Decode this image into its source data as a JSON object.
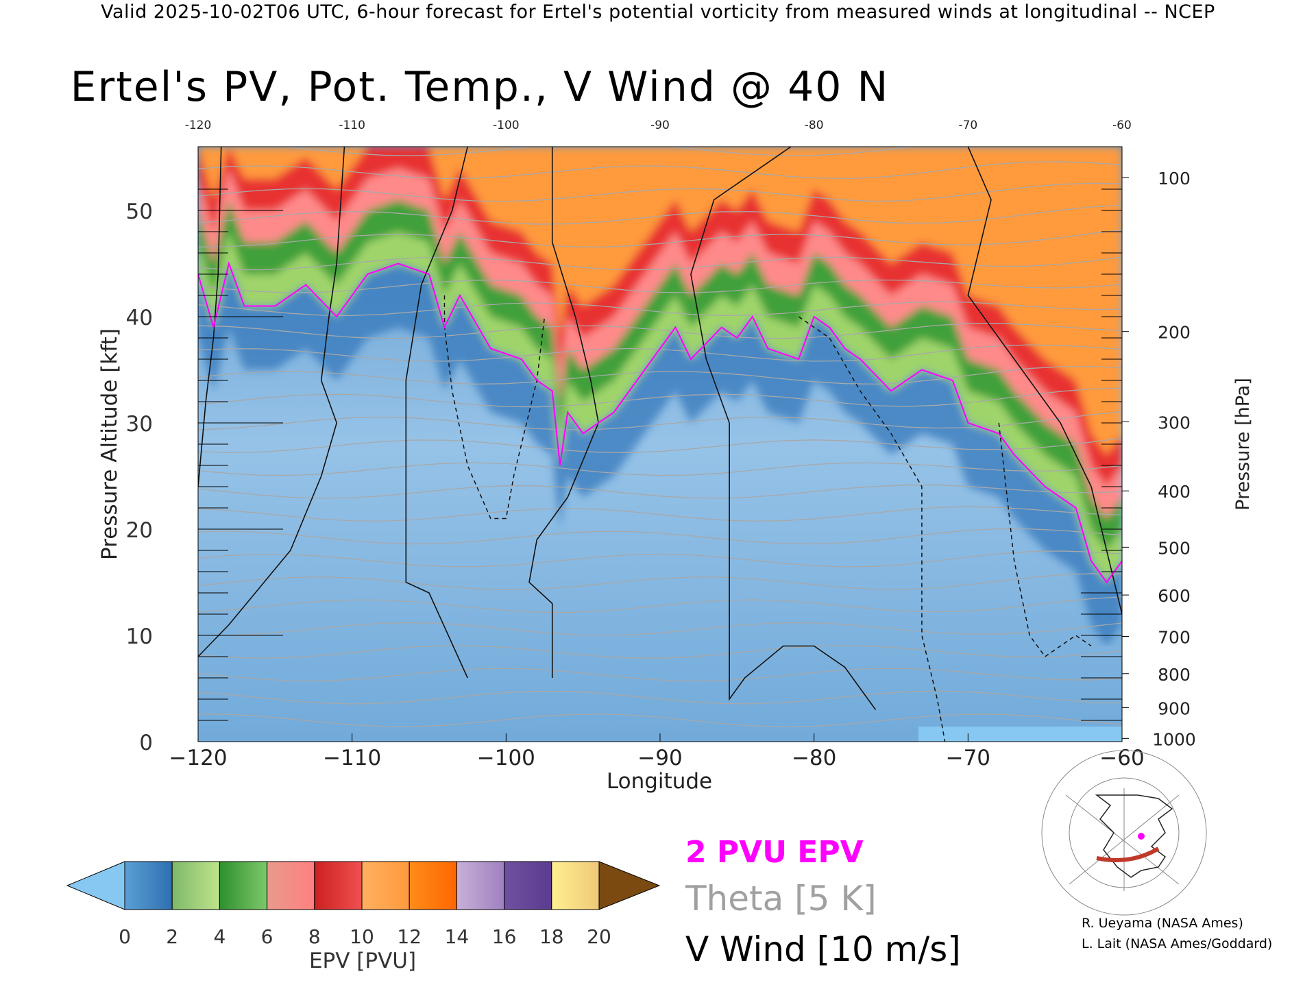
{
  "header": "Valid 2025-10-02T06 UTC, 6-hour forecast for Ertel's potential vorticity from measured winds at longitudinal -- NCEP",
  "chart_data": {
    "type": "heatmap",
    "title": "Ertel's PV, Pot. Temp., V Wind @ 40 N",
    "xlabel": "Longitude",
    "ylabel_left": "Pressure Altitude [kft]",
    "ylabel_right": "Pressure [hPa]",
    "xlim": [
      -120,
      -60
    ],
    "ylim_kft": [
      0,
      56
    ],
    "x_ticks": [
      -120,
      -110,
      -100,
      -90,
      -80,
      -70,
      -60
    ],
    "x_tick_labels": [
      "−120",
      "−110",
      "−100",
      "−90",
      "−80",
      "−70",
      "−60"
    ],
    "top_ticks": [
      -120,
      -110,
      -100,
      -90,
      -80,
      -70,
      -60
    ],
    "top_tick_labels": [
      "-120",
      "-110",
      "-100",
      "-90",
      "-80",
      "-70",
      "-60"
    ],
    "left_ticks": [
      0,
      10,
      20,
      30,
      40,
      50
    ],
    "pressure_ticks": [
      {
        "hPa": "100",
        "kft": 53.1
      },
      {
        "hPa": "200",
        "kft": 38.6
      },
      {
        "hPa": "300",
        "kft": 30.1
      },
      {
        "hPa": "400",
        "kft": 23.6
      },
      {
        "hPa": "500",
        "kft": 18.3
      },
      {
        "hPa": "600",
        "kft": 13.8
      },
      {
        "hPa": "700",
        "kft": 9.9
      },
      {
        "hPa": "800",
        "kft": 6.4
      },
      {
        "hPa": "900",
        "kft": 3.2
      },
      {
        "hPa": "1000",
        "kft": 0.3
      }
    ],
    "tropopause_2pvu": [
      [
        -120,
        44
      ],
      [
        -119,
        39
      ],
      [
        -118,
        45
      ],
      [
        -117,
        41
      ],
      [
        -115,
        41
      ],
      [
        -113,
        43
      ],
      [
        -111,
        40
      ],
      [
        -109,
        44
      ],
      [
        -107,
        45
      ],
      [
        -105,
        44
      ],
      [
        -104,
        39
      ],
      [
        -103,
        42
      ],
      [
        -101,
        37
      ],
      [
        -99,
        36
      ],
      [
        -98,
        34
      ],
      [
        -97,
        33
      ],
      [
        -96.5,
        26
      ],
      [
        -96,
        31
      ],
      [
        -95,
        29
      ],
      [
        -93,
        31
      ],
      [
        -91,
        35
      ],
      [
        -90,
        37
      ],
      [
        -89,
        39
      ],
      [
        -88,
        36
      ],
      [
        -86,
        39
      ],
      [
        -85,
        38
      ],
      [
        -84,
        40
      ],
      [
        -83,
        37
      ],
      [
        -81,
        36
      ],
      [
        -80,
        40
      ],
      [
        -79,
        39
      ],
      [
        -78,
        37
      ],
      [
        -77,
        36
      ],
      [
        -75,
        33
      ],
      [
        -73,
        35
      ],
      [
        -71,
        34
      ],
      [
        -70,
        30
      ],
      [
        -68,
        29
      ],
      [
        -67,
        27
      ],
      [
        -65,
        24
      ],
      [
        -63,
        22
      ],
      [
        -62,
        17
      ],
      [
        -61,
        15
      ],
      [
        -60,
        17
      ]
    ],
    "wind_zero_contours": [
      [
        [
          -118.5,
          56
        ],
        [
          -118.7,
          44
        ],
        [
          -119,
          38
        ],
        [
          -119.5,
          32
        ],
        [
          -120,
          24
        ]
      ],
      [
        [
          -110.5,
          56
        ],
        [
          -111,
          45
        ],
        [
          -111.5,
          40
        ],
        [
          -112,
          34
        ],
        [
          -111,
          30
        ],
        [
          -112,
          25
        ],
        [
          -114,
          18
        ],
        [
          -118,
          11
        ],
        [
          -120,
          8
        ]
      ],
      [
        [
          -102.5,
          56
        ],
        [
          -103.5,
          50
        ],
        [
          -105.5,
          43
        ],
        [
          -106.5,
          34
        ],
        [
          -106.5,
          15
        ],
        [
          -105,
          14
        ],
        [
          -102.5,
          6
        ]
      ],
      [
        [
          -97,
          56
        ],
        [
          -97,
          47
        ],
        [
          -95.5,
          40
        ],
        [
          -94.5,
          34
        ],
        [
          -94,
          30
        ],
        [
          -96,
          23
        ],
        [
          -98,
          19
        ],
        [
          -98.5,
          15
        ],
        [
          -97,
          13
        ],
        [
          -97,
          6
        ]
      ],
      [
        [
          -81.5,
          56
        ],
        [
          -86.5,
          51
        ],
        [
          -88,
          44
        ],
        [
          -87,
          36
        ],
        [
          -85.5,
          30
        ],
        [
          -85.5,
          22
        ],
        [
          -85.5,
          4
        ],
        [
          -84.5,
          6
        ],
        [
          -82,
          9
        ],
        [
          -80,
          9
        ],
        [
          -78,
          7
        ],
        [
          -76,
          3
        ]
      ],
      [
        [
          -70,
          56
        ],
        [
          -68.5,
          51
        ],
        [
          -70,
          42
        ],
        [
          -67,
          36
        ],
        [
          -64,
          30
        ],
        [
          -62,
          24
        ],
        [
          -61,
          18
        ],
        [
          -60,
          12
        ]
      ]
    ],
    "wind_dashed_contours": [
      [
        [
          -104,
          42
        ],
        [
          -104,
          39
        ],
        [
          -103.5,
          33
        ],
        [
          -102.5,
          26
        ],
        [
          -101,
          21
        ],
        [
          -100,
          21
        ],
        [
          -99.5,
          25
        ],
        [
          -98,
          34
        ],
        [
          -97.5,
          40
        ]
      ],
      [
        [
          -81,
          40
        ],
        [
          -79,
          38
        ],
        [
          -77,
          33
        ],
        [
          -75,
          29
        ],
        [
          -73,
          24
        ],
        [
          -73,
          10
        ],
        [
          -72,
          4
        ],
        [
          -71.5,
          0
        ]
      ],
      [
        [
          -68,
          30
        ],
        [
          -67,
          17
        ],
        [
          -66,
          10
        ],
        [
          -65,
          8
        ],
        [
          -63,
          10
        ],
        [
          -62,
          9
        ]
      ]
    ],
    "colorbar": {
      "label": "EPV [PVU]",
      "tick_labels": [
        "0",
        "2",
        "4",
        "6",
        "8",
        "10",
        "12",
        "14",
        "16",
        "18",
        "20"
      ],
      "bands": [
        [
          "#5aa0d6",
          "#2f6fb0"
        ],
        [
          "#7fb96a",
          "#bfe48a"
        ],
        [
          "#2e8f2e",
          "#7dc86a"
        ],
        [
          "#e89a8a",
          "#ff8080"
        ],
        [
          "#cc2020",
          "#f05050"
        ],
        [
          "#ffb060",
          "#ff9a3c"
        ],
        [
          "#ff8c1a",
          "#ff6600"
        ],
        [
          "#c8b0d8",
          "#a080c0"
        ],
        [
          "#7050a0",
          "#5a3c90"
        ],
        [
          "#fff090",
          "#f0c878"
        ]
      ],
      "under_color": "#86c8f2",
      "over_color": "#7a4a10"
    },
    "legend": [
      "2 PVU EPV",
      "Theta [5 K]",
      "V Wind [10 m/s]"
    ]
  },
  "legend_colors": {
    "pv": "#ff00ff",
    "theta": "#a0a0a0",
    "wind": "#000000"
  },
  "credits": [
    "R. Ueyama (NASA Ames)",
    "L. Lait (NASA Ames/Goddard)"
  ]
}
